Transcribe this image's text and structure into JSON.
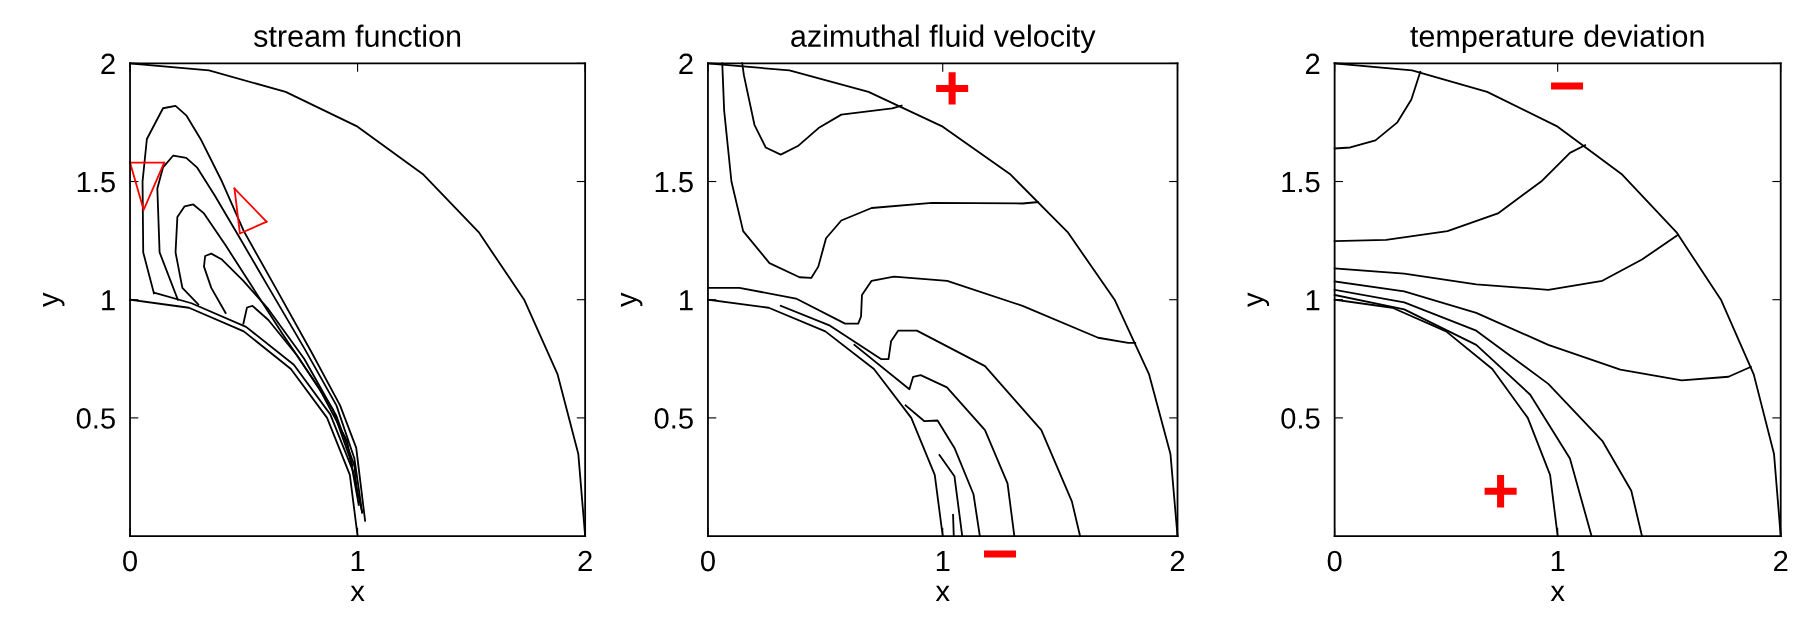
{
  "chart_data": [
    {
      "type": "line",
      "title": "stream function",
      "xlabel": "x",
      "ylabel": "y",
      "xlim": [
        0,
        2
      ],
      "ylim": [
        0,
        2
      ],
      "xticks": [
        0,
        1,
        2
      ],
      "yticks": [
        0.5,
        1,
        1.5,
        2
      ],
      "marker": "none",
      "line_style": "solid",
      "series": [
        {
          "color": "#000000",
          "x": [
            0,
            0.347,
            0.684,
            1.0,
            1.286,
            1.532,
            1.732,
            1.879,
            1.97,
            2
          ],
          "values": [
            2,
            1.97,
            1.879,
            1.732,
            1.532,
            1.286,
            1.0,
            0.684,
            0.347,
            0
          ]
        },
        {
          "color": "#000000",
          "x": [
            0,
            0.259,
            0.5,
            0.707,
            0.866,
            0.966,
            1
          ],
          "values": [
            1,
            0.966,
            0.866,
            0.707,
            0.5,
            0.259,
            0
          ]
        },
        {
          "color": "#000000",
          "x": [
            0.105,
            0.058,
            0.055,
            0.074,
            0.145,
            0.2,
            0.247,
            0.31,
            0.404,
            0.5,
            0.64,
            0.797,
            0.923,
            0.994,
            1.033
          ],
          "values": [
            1.027,
            1.2,
            1.5,
            1.68,
            1.81,
            1.82,
            1.78,
            1.68,
            1.5,
            1.29,
            1.05,
            0.779,
            0.553,
            0.373,
            0.065
          ]
        },
        {
          "color": "#000000",
          "x": [
            0.21,
            0.13,
            0.12,
            0.145,
            0.19,
            0.247,
            0.294,
            0.373,
            0.483,
            0.61,
            0.766,
            0.907,
            0.986,
            1.02
          ],
          "values": [
            1.0,
            1.2,
            1.47,
            1.56,
            1.61,
            1.6,
            1.56,
            1.44,
            1.26,
            1.05,
            0.794,
            0.553,
            0.328,
            0.1
          ]
        },
        {
          "color": "#000000",
          "x": [
            0.3,
            0.23,
            0.2,
            0.208,
            0.24,
            0.278,
            0.325,
            0.42,
            0.53,
            0.671,
            0.829,
            0.954,
            1.005
          ],
          "values": [
            0.98,
            1.05,
            1.2,
            1.35,
            1.395,
            1.403,
            1.365,
            1.23,
            1.065,
            0.854,
            0.629,
            0.403,
            0.132
          ]
        },
        {
          "color": "#000000",
          "x": [
            0.42,
            0.357,
            0.325,
            0.33,
            0.357,
            0.404,
            0.498,
            0.608,
            0.766,
            0.907,
            0.986,
            0.998
          ],
          "values": [
            0.944,
            1.05,
            1.14,
            1.185,
            1.195,
            1.17,
            1.08,
            0.96,
            0.749,
            0.508,
            0.298,
            0.177
          ]
        },
        {
          "color": "#000000",
          "x": [
            0.498,
            0.514,
            0.538,
            0.608,
            0.734,
            0.89,
            0.978
          ],
          "values": [
            0.899,
            0.967,
            0.974,
            0.914,
            0.764,
            0.538,
            0.298
          ]
        },
        {
          "color": "#000000",
          "x": [
            0.105,
            0.27,
            0.51,
            0.72,
            0.88,
            0.98,
            1.02
          ],
          "values": [
            1.03,
            0.985,
            0.885,
            0.725,
            0.515,
            0.275,
            0.1
          ]
        },
        {
          "color": "#ff0000",
          "x": [
            0.0,
            0.15
          ],
          "values": [
            1.58,
            1.58
          ]
        },
        {
          "color": "#ff0000",
          "x": [
            0.0,
            0.06,
            0.15
          ],
          "values": [
            1.58,
            1.38,
            1.58
          ]
        },
        {
          "color": "#ff0000",
          "x": [
            0.459,
            0.483,
            0.6
          ],
          "values": [
            1.47,
            1.28,
            1.33
          ]
        },
        {
          "color": "#ff0000",
          "x": [
            0.459,
            0.6
          ],
          "values": [
            1.47,
            1.33
          ]
        }
      ]
    },
    {
      "type": "line",
      "title": "azimuthal fluid velocity",
      "xlabel": "x",
      "ylabel": "y",
      "xlim": [
        0,
        2
      ],
      "ylim": [
        0,
        2
      ],
      "xticks": [
        0,
        1,
        2
      ],
      "yticks": [
        0.5,
        1,
        1.5,
        2
      ],
      "marker": "none",
      "line_style": "solid",
      "annotations": [
        "+",
        "−"
      ],
      "series": [
        {
          "color": "#000000",
          "x": [
            0,
            0.347,
            0.684,
            1.0,
            1.286,
            1.532,
            1.732,
            1.879,
            1.97,
            2
          ],
          "values": [
            2,
            1.97,
            1.879,
            1.732,
            1.532,
            1.286,
            1.0,
            0.684,
            0.347,
            0
          ]
        },
        {
          "color": "#000000",
          "x": [
            0,
            0.259,
            0.5,
            0.707,
            0.866,
            0.966,
            1
          ],
          "values": [
            1,
            0.966,
            0.866,
            0.707,
            0.5,
            0.259,
            0
          ]
        },
        {
          "color": "#000000",
          "x": [
            0.061,
            0.069,
            0.1,
            0.15,
            0.262,
            0.39,
            0.44,
            0.47,
            0.503,
            0.568,
            0.697,
            0.954,
            1.34,
            1.405
          ],
          "values": [
            2.0,
            1.8,
            1.5,
            1.29,
            1.155,
            1.095,
            1.092,
            1.14,
            1.26,
            1.335,
            1.388,
            1.41,
            1.407,
            1.413
          ]
        },
        {
          "color": "#000000",
          "x": [
            0.146,
            0.153,
            0.198,
            0.246,
            0.31,
            0.383,
            0.471,
            0.568,
            0.785,
            0.825
          ],
          "values": [
            2.0,
            1.95,
            1.74,
            1.644,
            1.614,
            1.65,
            1.726,
            1.783,
            1.809,
            1.821
          ]
        },
        {
          "color": "#000000",
          "x": [
            0,
            0.134,
            0.375,
            0.584,
            0.64,
            0.652,
            0.656,
            0.697,
            0.792,
            1.019,
            1.34,
            1.662,
            1.79,
            1.82
          ],
          "values": [
            1.05,
            1.05,
            1.005,
            0.899,
            0.899,
            0.929,
            1.02,
            1.08,
            1.098,
            1.08,
            0.974,
            0.839,
            0.817,
            0.817
          ]
        },
        {
          "color": "#000000",
          "x": [
            0.31,
            0.52,
            0.737,
            0.769,
            0.78,
            0.81,
            0.89,
            1.18,
            1.42,
            1.55,
            1.585
          ],
          "values": [
            0.974,
            0.89,
            0.749,
            0.749,
            0.824,
            0.869,
            0.869,
            0.719,
            0.448,
            0.147,
            0
          ]
        },
        {
          "color": "#000000",
          "x": [
            0.624,
            0.858,
            0.874,
            0.906,
            1.018,
            1.18,
            1.276,
            1.305
          ],
          "values": [
            0.809,
            0.621,
            0.674,
            0.681,
            0.629,
            0.448,
            0.223,
            0
          ]
        },
        {
          "color": "#000000",
          "x": [
            0.842,
            0.922,
            0.978,
            1.05,
            1.131,
            1.158
          ],
          "values": [
            0.553,
            0.486,
            0.489,
            0.373,
            0.177,
            0
          ]
        },
        {
          "color": "#000000",
          "x": [
            0.986,
            1.05,
            1.083
          ],
          "values": [
            0.343,
            0.253,
            0
          ]
        },
        {
          "color": "#000000",
          "x": [
            1.044,
            1.047
          ],
          "values": [
            0.09,
            0
          ]
        }
      ]
    },
    {
      "type": "line",
      "title": "temperature deviation",
      "xlabel": "x",
      "ylabel": "y",
      "xlim": [
        0,
        2
      ],
      "ylim": [
        0,
        2
      ],
      "xticks": [
        0,
        1,
        2
      ],
      "yticks": [
        0.5,
        1,
        1.5,
        2
      ],
      "marker": "none",
      "line_style": "solid",
      "annotations": [
        "−",
        "+"
      ],
      "series": [
        {
          "color": "#000000",
          "x": [
            0,
            0.347,
            0.684,
            1.0,
            1.286,
            1.532,
            1.732,
            1.879,
            1.97,
            2
          ],
          "values": [
            2,
            1.97,
            1.879,
            1.732,
            1.532,
            1.286,
            1.0,
            0.684,
            0.347,
            0
          ]
        },
        {
          "color": "#000000",
          "x": [
            0,
            0.259,
            0.5,
            0.707,
            0.866,
            0.966,
            1
          ],
          "values": [
            1,
            0.966,
            0.866,
            0.707,
            0.5,
            0.259,
            0
          ]
        },
        {
          "color": "#000000",
          "x": [
            0,
            0.07,
            0.183,
            0.28,
            0.344,
            0.384
          ],
          "values": [
            1.64,
            1.644,
            1.674,
            1.749,
            1.847,
            1.964
          ]
        },
        {
          "color": "#000000",
          "x": [
            0,
            0.231,
            0.506,
            0.732,
            0.926,
            1.055,
            1.123
          ],
          "values": [
            1.248,
            1.253,
            1.29,
            1.365,
            1.5,
            1.621,
            1.654
          ]
        },
        {
          "color": "#000000",
          "x": [
            0,
            0.312,
            0.635,
            0.958,
            1.2,
            1.378,
            1.54
          ],
          "values": [
            1.132,
            1.11,
            1.065,
            1.042,
            1.08,
            1.17,
            1.275
          ]
        },
        {
          "color": "#000000",
          "x": [
            0,
            0.312,
            0.635,
            0.958,
            1.281,
            1.556,
            1.766,
            1.866
          ],
          "values": [
            1.077,
            1.035,
            0.944,
            0.809,
            0.704,
            0.659,
            0.674,
            0.716
          ]
        },
        {
          "color": "#000000",
          "x": [
            0,
            0.312,
            0.635,
            0.958,
            1.2,
            1.33,
            1.378
          ],
          "values": [
            1.042,
            0.989,
            0.869,
            0.644,
            0.403,
            0.192,
            0
          ]
        },
        {
          "color": "#000000",
          "x": [
            0,
            0.312,
            0.635,
            0.877,
            1.055,
            1.152
          ],
          "values": [
            1.02,
            0.959,
            0.809,
            0.598,
            0.328,
            0
          ]
        }
      ]
    }
  ]
}
